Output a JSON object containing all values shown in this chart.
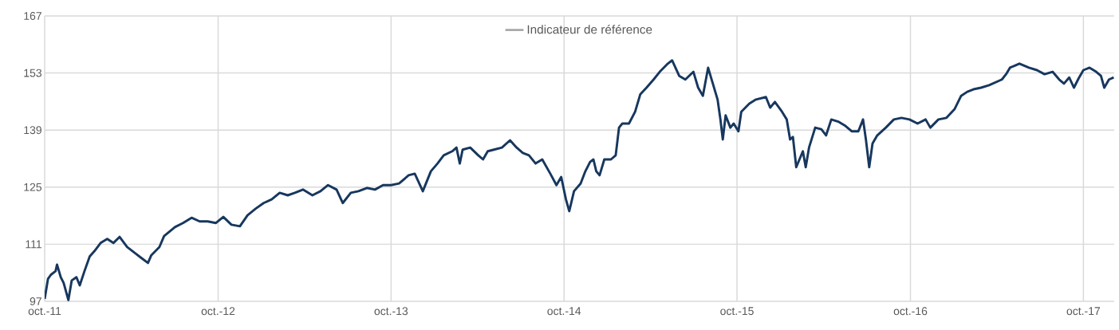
{
  "chart_data": {
    "type": "line",
    "x": [
      "2011-10-01",
      "2011-10-08",
      "2011-10-14",
      "2011-10-24",
      "2011-10-27",
      "2011-11-04",
      "2011-11-10",
      "2011-11-20",
      "2011-11-27",
      "2011-12-07",
      "2011-12-14",
      "2011-12-24",
      "2012-01-04",
      "2012-01-14",
      "2012-01-27",
      "2012-02-10",
      "2012-02-23",
      "2012-03-07",
      "2012-03-23",
      "2012-04-10",
      "2012-04-20",
      "2012-05-06",
      "2012-05-13",
      "2012-05-30",
      "2012-06-09",
      "2012-07-02",
      "2012-07-19",
      "2012-08-06",
      "2012-08-23",
      "2012-09-09",
      "2012-09-26",
      "2012-10-12",
      "2012-10-29",
      "2012-11-16",
      "2012-12-02",
      "2012-12-19",
      "2013-01-05",
      "2013-01-22",
      "2013-02-08",
      "2013-02-25",
      "2013-03-12",
      "2013-03-29",
      "2013-04-18",
      "2013-05-05",
      "2013-05-21",
      "2013-06-08",
      "2013-06-21",
      "2013-07-08",
      "2013-07-24",
      "2013-08-11",
      "2013-08-28",
      "2013-09-14",
      "2013-10-01",
      "2013-10-18",
      "2013-11-07",
      "2013-11-20",
      "2013-12-07",
      "2013-12-24",
      "2014-01-07",
      "2014-01-20",
      "2014-02-07",
      "2014-02-16",
      "2014-02-23",
      "2014-03-01",
      "2014-03-17",
      "2014-04-03",
      "2014-04-13",
      "2014-04-23",
      "2014-05-06",
      "2014-05-23",
      "2014-06-09",
      "2014-06-23",
      "2014-07-06",
      "2014-07-19",
      "2014-08-02",
      "2014-08-16",
      "2014-09-02",
      "2014-09-15",
      "2014-09-25",
      "2014-10-05",
      "2014-10-12",
      "2014-10-22",
      "2014-11-05",
      "2014-11-15",
      "2014-11-25",
      "2014-12-02",
      "2014-12-08",
      "2014-12-15",
      "2014-12-25",
      "2015-01-08",
      "2015-01-18",
      "2015-01-25",
      "2015-02-01",
      "2015-02-15",
      "2015-02-28",
      "2015-03-11",
      "2015-03-24",
      "2015-04-08",
      "2015-04-21",
      "2015-05-08",
      "2015-05-17",
      "2015-06-01",
      "2015-06-14",
      "2015-07-01",
      "2015-07-11",
      "2015-07-21",
      "2015-08-01",
      "2015-08-11",
      "2015-08-21",
      "2015-08-27",
      "2015-09-01",
      "2015-09-07",
      "2015-09-17",
      "2015-09-24",
      "2015-10-04",
      "2015-10-10",
      "2015-10-27",
      "2015-11-10",
      "2015-12-01",
      "2015-12-10",
      "2015-12-20",
      "2016-01-04",
      "2016-01-14",
      "2016-01-21",
      "2016-01-27",
      "2016-02-03",
      "2016-02-17",
      "2016-02-23",
      "2016-03-01",
      "2016-03-14",
      "2016-03-27",
      "2016-04-06",
      "2016-04-17",
      "2016-05-03",
      "2016-05-17",
      "2016-05-30",
      "2016-06-13",
      "2016-06-23",
      "2016-06-29",
      "2016-07-06",
      "2016-07-13",
      "2016-07-23",
      "2016-08-10",
      "2016-08-27",
      "2016-09-12",
      "2016-09-29",
      "2016-10-16",
      "2016-11-02",
      "2016-11-12",
      "2016-11-29",
      "2016-12-16",
      "2017-01-02",
      "2017-01-16",
      "2017-01-29",
      "2017-02-11",
      "2017-02-27",
      "2017-03-16",
      "2017-04-12",
      "2017-04-22",
      "2017-04-29",
      "2017-05-19",
      "2017-06-08",
      "2017-06-25",
      "2017-07-11",
      "2017-07-28",
      "2017-08-11",
      "2017-08-21",
      "2017-09-01",
      "2017-09-11",
      "2017-09-21",
      "2017-10-01",
      "2017-10-14",
      "2017-10-28",
      "2017-11-07",
      "2017-11-14",
      "2017-11-24",
      "2017-12-04"
    ],
    "series": [
      {
        "color": "#17375e",
        "values": [
          97.6,
          102.5,
          103.5,
          104.4,
          106.0,
          102.9,
          101.5,
          97.3,
          102.1,
          102.9,
          100.9,
          104.4,
          108.0,
          109.3,
          111.3,
          112.3,
          111.3,
          112.8,
          110.3,
          108.7,
          107.8,
          106.4,
          108.3,
          110.3,
          113.0,
          115.2,
          116.2,
          117.5,
          116.6,
          116.6,
          116.2,
          117.7,
          115.8,
          115.4,
          118.1,
          119.7,
          121.1,
          122.0,
          123.6,
          123.0,
          123.6,
          124.4,
          123.0,
          124.0,
          125.5,
          124.4,
          121.1,
          123.6,
          124.0,
          124.8,
          124.4,
          125.5,
          125.5,
          125.9,
          127.9,
          128.3,
          124.0,
          128.9,
          130.8,
          132.8,
          133.8,
          134.7,
          130.8,
          134.2,
          134.7,
          132.8,
          131.8,
          133.8,
          134.2,
          134.7,
          136.5,
          134.7,
          133.4,
          132.8,
          130.8,
          131.8,
          128.3,
          125.5,
          127.5,
          122.0,
          119.1,
          124.0,
          125.9,
          128.9,
          131.2,
          131.8,
          128.9,
          127.9,
          131.8,
          131.8,
          132.8,
          139.6,
          140.6,
          140.6,
          143.5,
          147.8,
          149.4,
          151.4,
          153.3,
          155.3,
          156.1,
          152.3,
          151.4,
          153.3,
          149.4,
          147.4,
          154.3,
          150.4,
          146.5,
          141.6,
          136.7,
          142.6,
          139.6,
          140.6,
          138.7,
          143.5,
          145.5,
          146.5,
          147.1,
          144.5,
          145.9,
          143.5,
          141.6,
          136.7,
          137.3,
          129.9,
          133.8,
          129.9,
          134.7,
          139.6,
          139.2,
          137.7,
          141.6,
          141.0,
          140.0,
          138.7,
          138.7,
          141.6,
          136.7,
          129.9,
          135.7,
          137.7,
          139.6,
          141.6,
          142.0,
          141.6,
          140.6,
          141.6,
          139.6,
          141.6,
          142.0,
          144.1,
          147.4,
          148.4,
          149.0,
          149.4,
          150.0,
          151.4,
          152.9,
          154.3,
          155.3,
          154.3,
          153.7,
          152.7,
          153.3,
          151.4,
          150.4,
          151.9,
          149.4,
          151.7,
          153.7,
          154.3,
          153.3,
          152.3,
          149.4,
          151.4,
          151.9
        ]
      },
      {
        "name": "Indicateur de référence",
        "color": "#a6a6a6",
        "values": [
          null,
          null,
          null,
          null,
          null,
          null,
          null,
          null,
          null,
          null,
          null,
          null,
          null,
          null,
          null,
          null,
          null,
          null,
          null,
          null,
          null,
          null,
          null,
          null,
          null,
          null,
          null,
          null,
          null,
          null,
          null,
          null,
          null,
          null,
          null,
          null,
          null,
          null,
          null,
          null,
          null,
          null,
          null,
          null,
          null,
          null,
          null,
          null,
          null,
          null,
          null,
          null,
          null,
          null,
          null,
          null,
          null,
          null,
          null,
          null,
          null,
          null,
          null,
          null,
          null,
          null,
          null,
          null,
          null,
          null,
          null,
          null,
          null,
          null,
          null,
          null,
          null,
          null,
          null,
          null,
          null,
          null,
          null,
          null,
          null,
          null,
          null,
          null,
          null,
          null,
          null,
          null,
          null,
          null,
          null,
          null,
          null,
          null,
          null,
          null,
          null,
          null,
          null,
          null,
          null,
          null,
          null,
          null,
          null,
          null,
          null,
          null,
          null,
          null,
          null,
          null,
          null,
          null,
          null,
          null,
          null,
          null,
          null,
          null,
          null,
          null,
          null,
          null,
          null,
          null,
          null,
          null,
          null,
          null,
          null,
          null,
          null,
          null,
          null,
          null,
          null,
          null,
          null,
          null,
          null,
          null,
          null,
          null,
          null,
          null,
          null,
          null,
          null,
          null,
          null,
          null,
          null,
          null,
          null,
          null,
          null,
          null,
          null,
          null,
          null,
          null,
          null,
          null,
          null,
          null,
          null,
          null,
          null,
          null,
          null,
          null,
          null
        ]
      }
    ],
    "xlim": [
      "2011-10-01",
      "2017-12-05"
    ],
    "xticks": [
      {
        "value": "2011-10-01",
        "label": "oct.-11"
      },
      {
        "value": "2012-10-01",
        "label": "oct.-12"
      },
      {
        "value": "2013-10-01",
        "label": "oct.-13"
      },
      {
        "value": "2014-10-01",
        "label": "oct.-14"
      },
      {
        "value": "2015-10-01",
        "label": "oct.-15"
      },
      {
        "value": "2016-10-01",
        "label": "oct.-16"
      },
      {
        "value": "2017-10-01",
        "label": "oct.-17"
      }
    ],
    "ylim": [
      97,
      167
    ],
    "yticks": [
      97,
      111,
      125,
      139,
      153,
      167
    ],
    "grid": true,
    "legend": "top"
  }
}
